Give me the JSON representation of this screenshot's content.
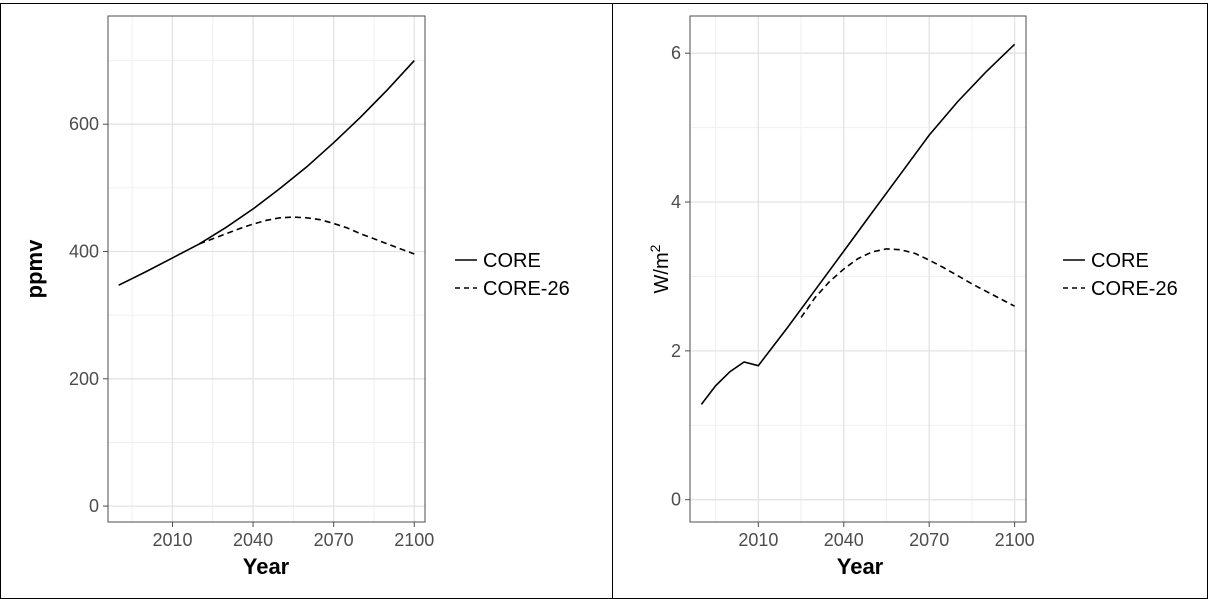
{
  "chart_data": [
    {
      "type": "line",
      "xlabel": "Year",
      "ylabel": "ppmv",
      "xlim": [
        1986,
        2104
      ],
      "ylim": [
        -25,
        770
      ],
      "xticks": [
        2010,
        2040,
        2070,
        2100
      ],
      "xtick_labels": [
        "2010",
        "2040",
        "2070",
        "2100"
      ],
      "yticks": [
        0,
        200,
        400,
        600
      ],
      "ytick_labels": [
        "0",
        "200",
        "400",
        "600"
      ],
      "grid": true,
      "legend_position": "right",
      "series": [
        {
          "name": "CORE",
          "linestyle": "solid",
          "x": [
            1990,
            2000,
            2010,
            2020,
            2030,
            2040,
            2050,
            2060,
            2070,
            2080,
            2090,
            2100
          ],
          "y": [
            347,
            368,
            390,
            412,
            438,
            467,
            499,
            533,
            571,
            611,
            654,
            700
          ]
        },
        {
          "name": "CORE-26",
          "linestyle": "dashed",
          "x": [
            2020,
            2025,
            2030,
            2035,
            2040,
            2045,
            2050,
            2055,
            2060,
            2065,
            2070,
            2075,
            2080,
            2085,
            2090,
            2095,
            2100
          ],
          "y": [
            412,
            420,
            428,
            436,
            443,
            449,
            453,
            454,
            453,
            450,
            444,
            437,
            428,
            420,
            412,
            404,
            396
          ]
        }
      ]
    },
    {
      "type": "line",
      "xlabel": "Year",
      "ylabel": "W/m",
      "ylabel_superscript": "2",
      "xlim": [
        1986,
        2104
      ],
      "ylim": [
        -0.3,
        6.5
      ],
      "xticks": [
        2010,
        2040,
        2070,
        2100
      ],
      "xtick_labels": [
        "2010",
        "2040",
        "2070",
        "2100"
      ],
      "yticks": [
        0,
        2,
        4,
        6
      ],
      "ytick_labels": [
        "0",
        "2",
        "4",
        "6"
      ],
      "grid": true,
      "legend_position": "right",
      "series": [
        {
          "name": "CORE",
          "linestyle": "solid",
          "x": [
            1990,
            1995,
            2000,
            2005,
            2010,
            2020,
            2030,
            2040,
            2050,
            2060,
            2070,
            2080,
            2090,
            2100
          ],
          "y": [
            1.28,
            1.53,
            1.72,
            1.85,
            1.8,
            2.3,
            2.82,
            3.34,
            3.86,
            4.38,
            4.9,
            5.35,
            5.75,
            6.12
          ]
        },
        {
          "name": "CORE-26",
          "linestyle": "dashed",
          "x": [
            2025,
            2030,
            2035,
            2040,
            2045,
            2050,
            2055,
            2060,
            2065,
            2070,
            2075,
            2080,
            2085,
            2090,
            2095,
            2100
          ],
          "y": [
            2.45,
            2.72,
            2.93,
            3.1,
            3.24,
            3.33,
            3.37,
            3.36,
            3.31,
            3.22,
            3.12,
            3.01,
            2.9,
            2.8,
            2.7,
            2.6
          ]
        }
      ]
    }
  ]
}
